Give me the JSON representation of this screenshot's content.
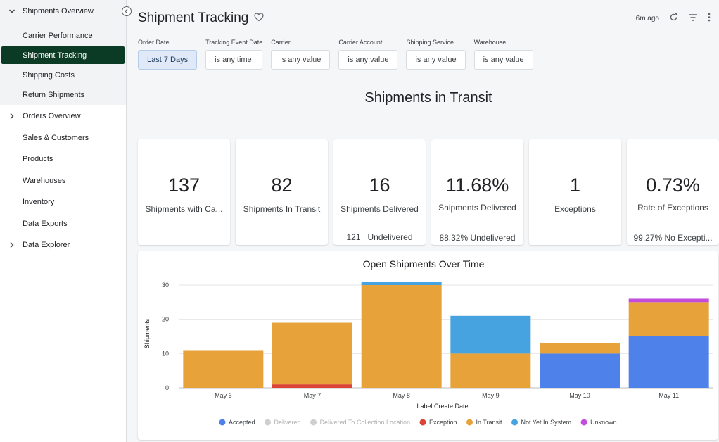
{
  "sidebar": {
    "groups": [
      {
        "label": "Shipments Overview",
        "expanded": true,
        "children": [
          "Carrier Performance",
          "Shipment Tracking",
          "Shipping Costs",
          "Return Shipments"
        ],
        "active": "Shipment Tracking"
      },
      {
        "label": "Orders Overview",
        "expanded": false
      }
    ],
    "items": [
      "Sales & Customers",
      "Products",
      "Warehouses",
      "Inventory",
      "Data Exports"
    ],
    "explorer": {
      "label": "Data Explorer",
      "expanded": false
    }
  },
  "header": {
    "title": "Shipment Tracking",
    "last_updated": "6m ago"
  },
  "filters": [
    {
      "label": "Order Date",
      "value": "Last 7 Days"
    },
    {
      "label": "Tracking Event Date",
      "value": "is any time"
    },
    {
      "label": "Carrier",
      "value": "is any value"
    },
    {
      "label": "Carrier Account",
      "value": "is any value"
    },
    {
      "label": "Shipping Service",
      "value": "is any value"
    },
    {
      "label": "Warehouse",
      "value": "is any value"
    }
  ],
  "section_title": "Shipments in Transit",
  "tiles": [
    {
      "value": "137",
      "label": "Shipments with Ca...",
      "sub": ""
    },
    {
      "value": "82",
      "label": "Shipments In Transit",
      "sub": ""
    },
    {
      "value": "16",
      "label": "Shipments Delivered",
      "sub": "121   Undelivered"
    },
    {
      "value": "11.68%",
      "label": "Shipments Delivered",
      "sub": "88.32% Undelivered"
    },
    {
      "value": "1",
      "label": "Exceptions",
      "sub": ""
    },
    {
      "value": "0.73%",
      "label": "Rate of Exceptions",
      "sub": "99.27% No Excepti..."
    }
  ],
  "colors": {
    "accepted": "#4e81ea",
    "delivered": "#cfcfcf",
    "delivered_collection": "#cfcfcf",
    "exception": "#db4437",
    "in_transit": "#e8a23a",
    "not_yet_in_system": "#47a3e0",
    "unknown": "#c34ddb",
    "sidebar_active": "#0b3b24"
  },
  "chart_data": {
    "type": "bar",
    "stacked": true,
    "title": "Open Shipments Over Time",
    "xlabel": "Label Create Date",
    "ylabel": "Shipments",
    "ylim": [
      0,
      30
    ],
    "yticks": [
      0,
      10,
      20,
      30
    ],
    "grid": true,
    "legend_position": "bottom",
    "categories": [
      "May 6",
      "May 7",
      "May 8",
      "May 9",
      "May 10",
      "May 11"
    ],
    "series": [
      {
        "name": "Accepted",
        "color": "#4e81ea",
        "values": [
          0,
          0,
          0,
          0,
          10,
          15
        ]
      },
      {
        "name": "Delivered",
        "color": "#cfcfcf",
        "values": [
          0,
          0,
          0,
          0,
          0,
          0
        ],
        "muted": true
      },
      {
        "name": "Delivered To Collection Location",
        "color": "#cfcfcf",
        "values": [
          0,
          0,
          0,
          0,
          0,
          0
        ],
        "muted": true
      },
      {
        "name": "Exception",
        "color": "#db4437",
        "values": [
          0,
          1,
          0,
          0,
          0,
          0
        ]
      },
      {
        "name": "In Transit",
        "color": "#e8a23a",
        "values": [
          11,
          18,
          30,
          10,
          3,
          10
        ]
      },
      {
        "name": "Not Yet In System",
        "color": "#47a3e0",
        "values": [
          0,
          0,
          1,
          11,
          0,
          0
        ]
      },
      {
        "name": "Unknown",
        "color": "#c34ddb",
        "values": [
          0,
          0,
          0,
          0,
          0,
          1
        ]
      }
    ]
  }
}
